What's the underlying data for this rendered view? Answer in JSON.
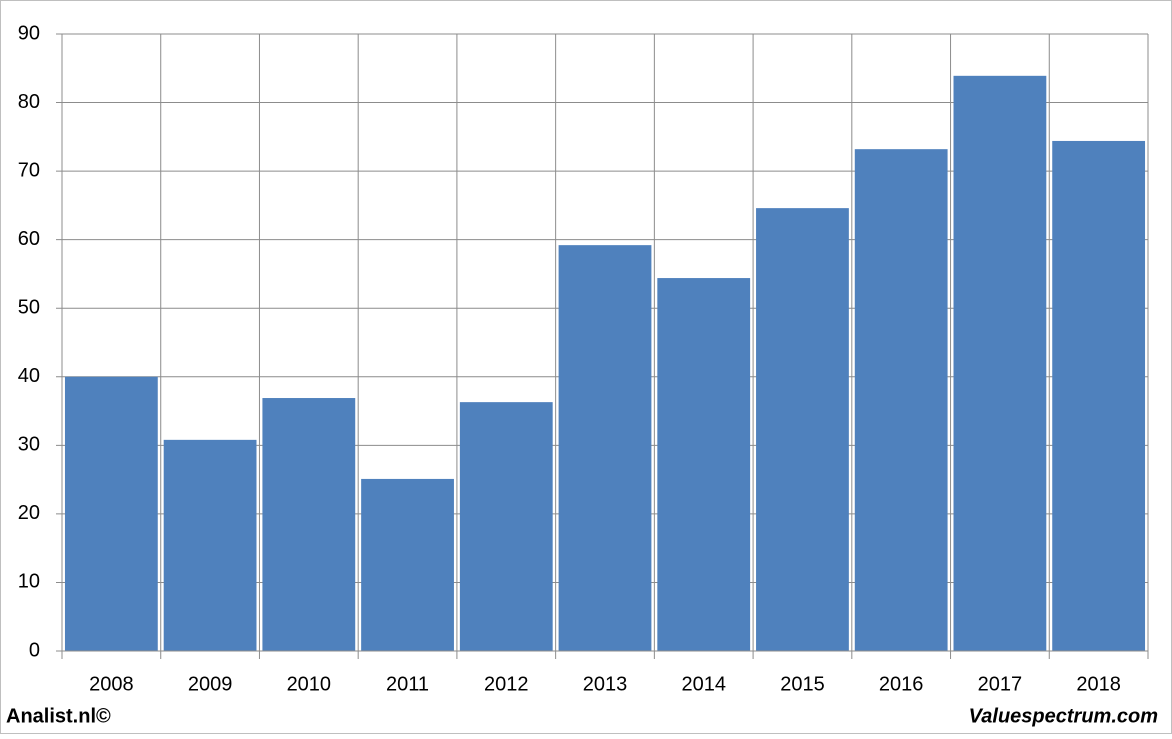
{
  "chart_data": {
    "type": "bar",
    "categories": [
      "2008",
      "2009",
      "2010",
      "2011",
      "2012",
      "2013",
      "2014",
      "2015",
      "2016",
      "2017",
      "2018"
    ],
    "values": [
      40,
      30.8,
      36.9,
      25.1,
      36.3,
      59.2,
      54.4,
      64.6,
      73.2,
      83.9,
      74.4
    ],
    "color": "#4f81bd",
    "ylim": [
      0,
      90
    ],
    "yticks": [
      0,
      10,
      20,
      30,
      40,
      50,
      60,
      70,
      80,
      90
    ],
    "grid": true,
    "credits": [
      "Analist.nl©",
      "Valuespectrum.com"
    ]
  }
}
